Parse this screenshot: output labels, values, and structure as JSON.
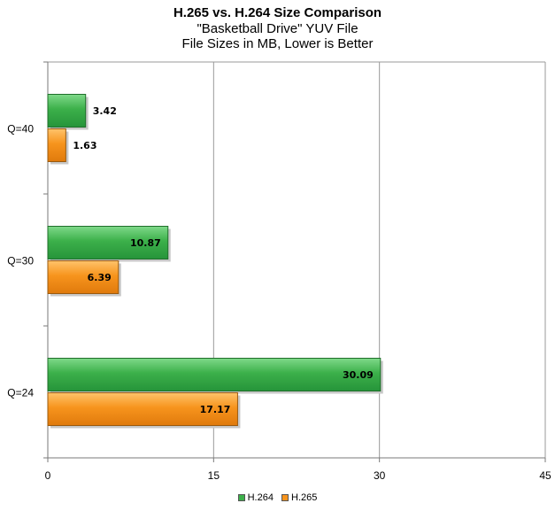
{
  "chart_data": {
    "type": "bar",
    "orientation": "horizontal",
    "title": "H.265 vs. H.264 Size Comparison",
    "subtitle_lines": [
      "\"Basketball Drive\" YUV File",
      "File Sizes in MB, Lower is Better"
    ],
    "categories": [
      "Q=40",
      "Q=30",
      "Q=24"
    ],
    "series": [
      {
        "name": "H.264",
        "values": [
          3.42,
          10.87,
          30.09
        ],
        "labels": [
          "3.42",
          "10.87",
          "30.09"
        ],
        "color": "#3cb04a",
        "edge": "#1f6e2a"
      },
      {
        "name": "H.265",
        "values": [
          1.63,
          6.39,
          17.17
        ],
        "labels": [
          "1.63",
          "6.39",
          "17.17"
        ],
        "color": "#f7941d",
        "edge": "#9a5a0e"
      }
    ],
    "xlim": [
      0,
      45
    ],
    "xticks": [
      "0",
      "15",
      "30",
      "45"
    ],
    "xtick_values": [
      0,
      15,
      30,
      45
    ],
    "grid": true,
    "legend_position": "bottom-center"
  }
}
